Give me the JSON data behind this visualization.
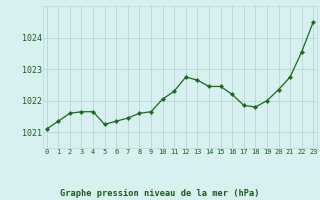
{
  "x": [
    0,
    1,
    2,
    3,
    4,
    5,
    6,
    7,
    8,
    9,
    10,
    11,
    12,
    13,
    14,
    15,
    16,
    17,
    18,
    19,
    20,
    21,
    22,
    23
  ],
  "y": [
    1021.1,
    1021.35,
    1021.6,
    1021.65,
    1021.65,
    1021.25,
    1021.35,
    1021.45,
    1021.6,
    1021.65,
    1022.05,
    1022.3,
    1022.75,
    1022.65,
    1022.45,
    1022.45,
    1022.2,
    1021.85,
    1021.8,
    1022.0,
    1022.35,
    1022.75,
    1023.55,
    1024.5
  ],
  "line_color": "#1a6b1a",
  "marker_color": "#1a6b1a",
  "bg_color": "#d8f0f0",
  "grid_color": "#b8dada",
  "title": "Graphe pression niveau de la mer (hPa)",
  "title_color": "#1a5c1a",
  "xlabel_ticks": [
    "0",
    "1",
    "2",
    "3",
    "4",
    "5",
    "6",
    "7",
    "8",
    "9",
    "10",
    "11",
    "12",
    "13",
    "14",
    "15",
    "16",
    "17",
    "18",
    "19",
    "20",
    "21",
    "22",
    "23"
  ],
  "yticks": [
    1021,
    1022,
    1023,
    1024
  ],
  "ylim": [
    1020.5,
    1025.0
  ],
  "xlim": [
    -0.3,
    23.3
  ]
}
